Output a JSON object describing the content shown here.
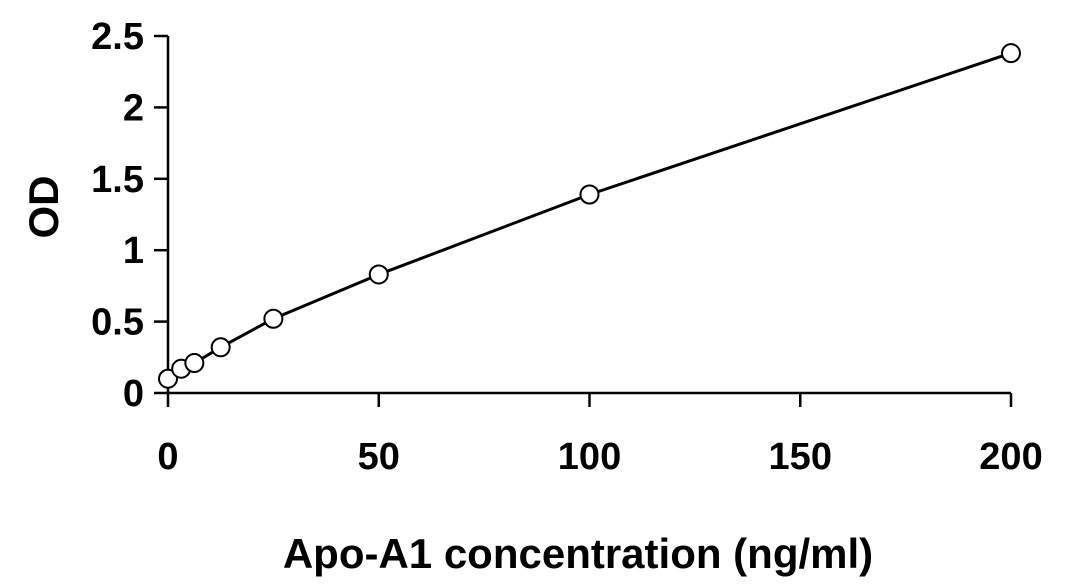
{
  "chart_data": {
    "type": "line",
    "title": "",
    "xlabel": "Apo-A1 concentration (ng/ml)",
    "ylabel": "OD",
    "xlim": [
      0,
      200
    ],
    "ylim": [
      0,
      2.5
    ],
    "x_ticks": [
      0,
      50,
      100,
      150,
      200
    ],
    "y_ticks": [
      0,
      0.5,
      1,
      1.5,
      2,
      2.5
    ],
    "x_tick_labels": [
      "0",
      "50",
      "100",
      "150",
      "200"
    ],
    "y_tick_labels": [
      "0",
      "0.5",
      "1",
      "1.5",
      "2",
      "2.5"
    ],
    "grid": false,
    "legend": "none",
    "series": [
      {
        "x": [
          0,
          3.125,
          6.25,
          12.5,
          25,
          50,
          100,
          200
        ],
        "y": [
          0.1,
          0.17,
          0.21,
          0.32,
          0.52,
          0.83,
          1.39,
          2.38
        ],
        "line_color": "#000000",
        "marker": "open-circle",
        "marker_fill": "#ffffff"
      }
    ]
  }
}
